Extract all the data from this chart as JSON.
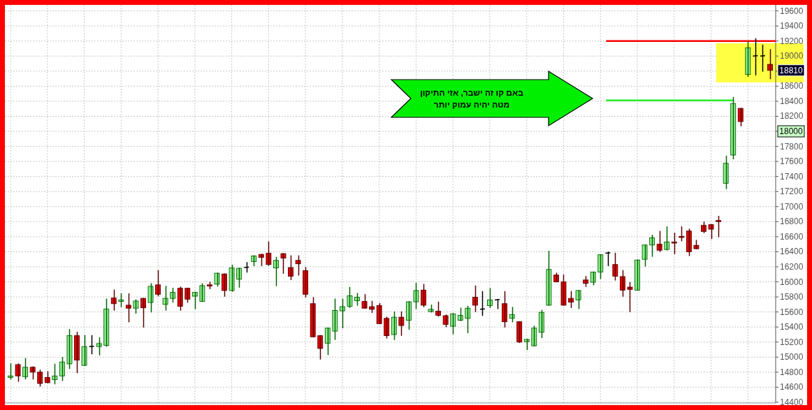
{
  "chart_data": {
    "type": "candlestick",
    "categories": [
      null,
      null,
      null,
      null,
      null,
      null,
      null,
      null,
      null,
      null,
      null,
      null,
      null,
      null,
      null,
      null,
      null,
      null,
      null,
      null,
      null,
      null,
      null,
      null,
      null,
      null,
      null,
      null,
      null,
      null,
      null,
      null,
      null,
      null,
      null,
      null,
      null,
      null,
      null,
      null,
      null,
      null,
      null,
      null,
      null,
      null,
      null,
      null,
      null,
      null,
      null,
      null,
      null,
      null,
      null,
      null,
      null,
      null,
      null,
      null,
      null,
      null,
      null,
      null,
      null,
      null,
      null,
      null,
      null,
      null,
      null,
      null,
      null,
      null,
      null,
      null,
      null,
      null,
      null,
      null,
      null,
      null,
      null,
      null,
      null,
      null,
      null,
      null,
      null,
      null,
      null,
      null,
      null,
      null,
      null,
      null,
      null,
      null,
      null,
      null,
      null,
      null,
      null,
      null
    ],
    "ohlc": [
      [
        14730,
        14910,
        14710,
        14750
      ],
      [
        14900,
        14910,
        14680,
        14750
      ],
      [
        14740,
        14980,
        14710,
        14865
      ],
      [
        14865,
        14870,
        14710,
        14800
      ],
      [
        14800,
        14825,
        14615,
        14650
      ],
      [
        14730,
        14805,
        14660,
        14660
      ],
      [
        14700,
        14905,
        14645,
        14750
      ],
      [
        14750,
        14995,
        14690,
        14935
      ],
      [
        14910,
        15365,
        14850,
        15285
      ],
      [
        15285,
        15330,
        14795,
        14960
      ],
      [
        14890,
        15285,
        14890,
        15140
      ],
      [
        15140,
        15285,
        15045,
        15145
      ],
      [
        15140,
        15255,
        15030,
        15180
      ],
      [
        15155,
        15770,
        15145,
        15640
      ],
      [
        15785,
        15890,
        15625,
        15710
      ],
      [
        15740,
        15840,
        15670,
        15760
      ],
      [
        15690,
        15840,
        15470,
        15650
      ],
      [
        15650,
        15760,
        15585,
        15745
      ],
      [
        15780,
        15780,
        15400,
        15655
      ],
      [
        15725,
        15975,
        15600,
        15940
      ],
      [
        15960,
        16150,
        15815,
        15835
      ],
      [
        15700,
        15940,
        15625,
        15780
      ],
      [
        15780,
        15915,
        15730,
        15860
      ],
      [
        15915,
        15930,
        15625,
        15675
      ],
      [
        15915,
        15915,
        15730,
        15770
      ],
      [
        15810,
        15860,
        15645,
        15860
      ],
      [
        15740,
        15975,
        15740,
        15950
      ],
      [
        15960,
        15995,
        15910,
        15945
      ],
      [
        15970,
        16115,
        15945,
        16115
      ],
      [
        16105,
        16105,
        15810,
        15885
      ],
      [
        15885,
        16220,
        15875,
        16185
      ],
      [
        16035,
        16180,
        15930,
        16180
      ],
      [
        16190,
        16255,
        16130,
        16195
      ],
      [
        16270,
        16345,
        16215,
        16345
      ],
      [
        16365,
        16365,
        16215,
        16325
      ],
      [
        16380,
        16530,
        16220,
        16230
      ],
      [
        16185,
        16325,
        15950,
        16285
      ],
      [
        16375,
        16375,
        16115,
        16315
      ],
      [
        16190,
        16345,
        16030,
        16075
      ],
      [
        16285,
        16345,
        16090,
        16240
      ],
      [
        16150,
        16190,
        15800,
        15835
      ],
      [
        15710,
        15790,
        15270,
        15270
      ],
      [
        15285,
        15285,
        14975,
        15115
      ],
      [
        15185,
        15385,
        15035,
        15385
      ],
      [
        15345,
        15770,
        15235,
        15620
      ],
      [
        15615,
        15770,
        15390,
        15670
      ],
      [
        15675,
        15925,
        15660,
        15815
      ],
      [
        15750,
        15845,
        15690,
        15795
      ],
      [
        15740,
        15830,
        15650,
        15650
      ],
      [
        15670,
        15740,
        15595,
        15635
      ],
      [
        15685,
        15710,
        15445,
        15445
      ],
      [
        15515,
        15530,
        15255,
        15285
      ],
      [
        15300,
        15600,
        15235,
        15530
      ],
      [
        15530,
        15600,
        15290,
        15420
      ],
      [
        15490,
        15735,
        15370,
        15735
      ],
      [
        15735,
        15980,
        15645,
        15885
      ],
      [
        15890,
        15965,
        15670,
        15690
      ],
      [
        15605,
        15690,
        15600,
        15635
      ],
      [
        15610,
        15730,
        15545,
        15555
      ],
      [
        15550,
        15560,
        15405,
        15435
      ],
      [
        15410,
        15575,
        15310,
        15575
      ],
      [
        15490,
        15650,
        15485,
        15555
      ],
      [
        15515,
        15675,
        15325,
        15650
      ],
      [
        15795,
        15945,
        15605,
        15690
      ],
      [
        15635,
        15870,
        15555,
        15640
      ],
      [
        15685,
        15910,
        15660,
        15760
      ],
      [
        15760,
        15765,
        15645,
        15765
      ],
      [
        15710,
        15870,
        15400,
        15470
      ],
      [
        15515,
        15660,
        15470,
        15565
      ],
      [
        15470,
        15470,
        15195,
        15200
      ],
      [
        15205,
        15235,
        15100,
        15235
      ],
      [
        15150,
        15410,
        15150,
        15385
      ],
      [
        15330,
        15620,
        15260,
        15595
      ],
      [
        15690,
        16405,
        15690,
        16165
      ],
      [
        16090,
        16115,
        16000,
        16000
      ],
      [
        16000,
        16090,
        15690,
        15690
      ],
      [
        15780,
        15870,
        15660,
        15730
      ],
      [
        15760,
        15885,
        15645,
        15885
      ],
      [
        16025,
        16070,
        15940,
        15980
      ],
      [
        15995,
        16130,
        15960,
        16130
      ],
      [
        16130,
        16360,
        16045,
        16360
      ],
      [
        16380,
        16395,
        16215,
        16385
      ],
      [
        16230,
        16380,
        16025,
        16075
      ],
      [
        16070,
        16150,
        15810,
        15890
      ],
      [
        15930,
        15990,
        15605,
        15900
      ],
      [
        15890,
        16290,
        15890,
        16290
      ],
      [
        16300,
        16490,
        16210,
        16490
      ],
      [
        16490,
        16620,
        16340,
        16585
      ],
      [
        16500,
        16670,
        16405,
        16420
      ],
      [
        16430,
        16730,
        16425,
        16530
      ],
      [
        16530,
        16645,
        16375,
        16515
      ],
      [
        16605,
        16730,
        16545,
        16590
      ],
      [
        16675,
        16700,
        16350,
        16400
      ],
      [
        16485,
        16550,
        16440,
        16440
      ],
      [
        16750,
        16795,
        16655,
        16670
      ],
      [
        16760,
        16760,
        16575,
        16700
      ],
      [
        16815,
        16870,
        16600,
        16800
      ],
      [
        17310,
        17670,
        17240,
        17575
      ],
      [
        17685,
        18450,
        17635,
        18370
      ],
      [
        18305,
        18305,
        18075,
        18130
      ],
      [
        18755,
        19185,
        18730,
        19110
      ],
      [
        19000,
        19230,
        18750,
        19005
      ],
      [
        19000,
        19145,
        18800,
        19005
      ],
      [
        18890,
        19085,
        18700,
        18810
      ]
    ],
    "ylim": [
      14390,
      19680
    ],
    "yticks": [
      14400,
      14600,
      14800,
      15000,
      15200,
      15400,
      15600,
      15800,
      16000,
      16200,
      16400,
      16600,
      16800,
      17000,
      17200,
      17400,
      17600,
      {
        "value": 18000,
        "label": null
      },
      17800,
      18200,
      18400,
      18600,
      {
        "value": 18800,
        "label": null
      },
      19000,
      19200,
      19400,
      19600
    ],
    "tick_labels": "y",
    "grid": true,
    "ref_lines": [
      {
        "axis": "y",
        "value": 19200,
        "color": "#ff0000"
      },
      {
        "axis": "y",
        "value": 18410,
        "color": "#22ee22"
      }
    ],
    "bands": [
      {
        "axis": "y",
        "from": 18650,
        "to": 19170,
        "color": "#ffff44"
      }
    ],
    "annotations": [
      "באם קו זה ישבר, אזי התיקון",
      "מטה יהיה עמוק יותר",
      {
        "text": "18810",
        "y": 18810
      },
      {
        "text": "18000",
        "y": 18000
      }
    ]
  }
}
